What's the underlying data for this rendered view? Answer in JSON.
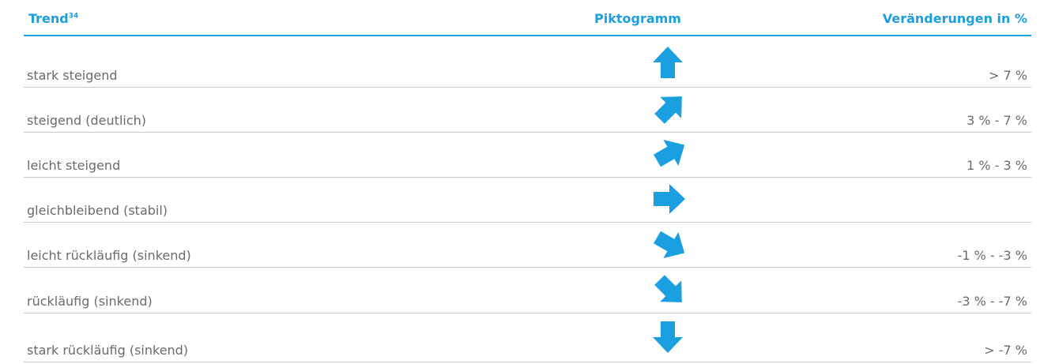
{
  "header": {
    "trend": "Trend",
    "trend_note": "34",
    "pictogram": "Piktogramm",
    "change": "Veränderungen in %"
  },
  "rows": [
    {
      "trend": "stark steigend",
      "change": "> 7 %"
    },
    {
      "trend": "steigend (deutlich)",
      "change": "3 % - 7 %"
    },
    {
      "trend": "leicht steigend",
      "change": "1 % - 3 %"
    },
    {
      "trend": "gleichbleibend (stabil)"
    },
    {
      "trend": "leicht rückläufig (sinkend)",
      "change": "-1 % - -3 %"
    },
    {
      "trend": "rückläufig (sinkend)",
      "change": "-3 % - -7 %"
    },
    {
      "trend": "stark rückläufig (sinkend)",
      "change": "> -7 %"
    }
  ]
}
